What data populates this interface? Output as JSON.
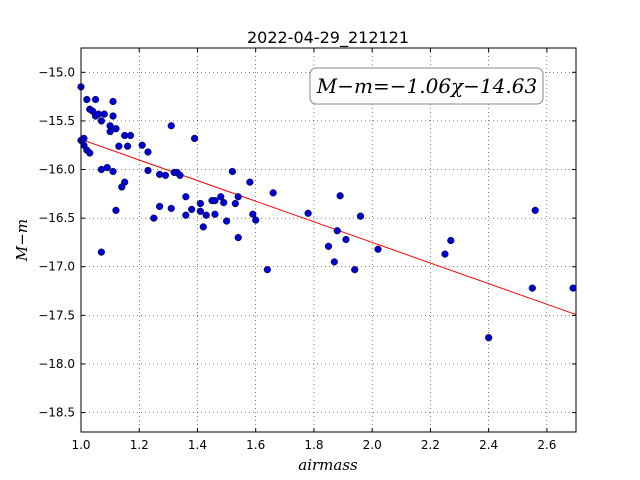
{
  "chart_data": {
    "type": "scatter",
    "title": "2022-04-29_212121",
    "xlabel": "airmass",
    "ylabel": "M−m",
    "annotation": "M−m=−1.06χ−14.63",
    "xlim": [
      1.0,
      2.7
    ],
    "ylim": [
      -18.7,
      -14.75
    ],
    "y_inverted": true,
    "grid": true,
    "x_ticks": [
      1.0,
      1.2,
      1.4,
      1.6,
      1.8,
      2.0,
      2.2,
      2.4,
      2.6
    ],
    "x_tick_labels": [
      "1.0",
      "1.2",
      "1.4",
      "1.6",
      "1.8",
      "2.0",
      "2.2",
      "2.4",
      "2.6"
    ],
    "y_ticks": [
      -15.0,
      -15.5,
      -16.0,
      -16.5,
      -17.0,
      -17.5,
      -18.0,
      -18.5
    ],
    "y_tick_labels": [
      "−15.0",
      "−15.5",
      "−16.0",
      "−16.5",
      "−17.0",
      "−17.5",
      "−18.0",
      "−18.5"
    ],
    "fit": {
      "slope": -1.06,
      "intercept": -14.63,
      "x_range": [
        1.0,
        2.7
      ],
      "color": "#ff0000"
    },
    "point_color": "#0000cc",
    "points": [
      [
        1.0,
        -15.15
      ],
      [
        1.0,
        -15.7
      ],
      [
        1.01,
        -15.75
      ],
      [
        1.01,
        -15.68
      ],
      [
        1.02,
        -15.28
      ],
      [
        1.02,
        -15.8
      ],
      [
        1.03,
        -15.38
      ],
      [
        1.03,
        -15.83
      ],
      [
        1.04,
        -15.4
      ],
      [
        1.05,
        -15.45
      ],
      [
        1.05,
        -15.28
      ],
      [
        1.06,
        -15.43
      ],
      [
        1.07,
        -15.5
      ],
      [
        1.07,
        -16.0
      ],
      [
        1.07,
        -16.85
      ],
      [
        1.08,
        -15.43
      ],
      [
        1.09,
        -15.98
      ],
      [
        1.1,
        -15.55
      ],
      [
        1.1,
        -15.61
      ],
      [
        1.11,
        -15.45
      ],
      [
        1.11,
        -15.3
      ],
      [
        1.11,
        -16.02
      ],
      [
        1.12,
        -15.58
      ],
      [
        1.12,
        -16.42
      ],
      [
        1.13,
        -15.76
      ],
      [
        1.14,
        -16.18
      ],
      [
        1.15,
        -15.65
      ],
      [
        1.15,
        -16.13
      ],
      [
        1.16,
        -15.76
      ],
      [
        1.17,
        -15.65
      ],
      [
        1.21,
        -15.75
      ],
      [
        1.23,
        -15.82
      ],
      [
        1.23,
        -16.01
      ],
      [
        1.25,
        -16.5
      ],
      [
        1.27,
        -16.05
      ],
      [
        1.27,
        -16.38
      ],
      [
        1.29,
        -16.06
      ],
      [
        1.31,
        -15.55
      ],
      [
        1.31,
        -16.4
      ],
      [
        1.32,
        -16.03
      ],
      [
        1.33,
        -16.03
      ],
      [
        1.34,
        -16.06
      ],
      [
        1.36,
        -16.28
      ],
      [
        1.36,
        -16.47
      ],
      [
        1.38,
        -16.41
      ],
      [
        1.39,
        -15.68
      ],
      [
        1.41,
        -16.35
      ],
      [
        1.41,
        -16.43
      ],
      [
        1.42,
        -16.59
      ],
      [
        1.43,
        -16.47
      ],
      [
        1.45,
        -16.32
      ],
      [
        1.46,
        -16.32
      ],
      [
        1.46,
        -16.46
      ],
      [
        1.48,
        -16.28
      ],
      [
        1.49,
        -16.34
      ],
      [
        1.5,
        -16.53
      ],
      [
        1.52,
        -16.02
      ],
      [
        1.53,
        -16.35
      ],
      [
        1.54,
        -16.28
      ],
      [
        1.54,
        -16.7
      ],
      [
        1.58,
        -16.13
      ],
      [
        1.59,
        -16.46
      ],
      [
        1.6,
        -16.52
      ],
      [
        1.64,
        -17.03
      ],
      [
        1.66,
        -16.24
      ],
      [
        1.78,
        -16.45
      ],
      [
        1.85,
        -16.79
      ],
      [
        1.87,
        -16.95
      ],
      [
        1.88,
        -16.63
      ],
      [
        1.89,
        -16.27
      ],
      [
        1.91,
        -16.72
      ],
      [
        1.94,
        -17.03
      ],
      [
        1.96,
        -16.48
      ],
      [
        2.02,
        -16.82
      ],
      [
        2.25,
        -16.87
      ],
      [
        2.27,
        -16.73
      ],
      [
        2.4,
        -17.73
      ],
      [
        2.55,
        -17.22
      ],
      [
        2.56,
        -16.42
      ],
      [
        2.69,
        -17.22
      ]
    ]
  }
}
